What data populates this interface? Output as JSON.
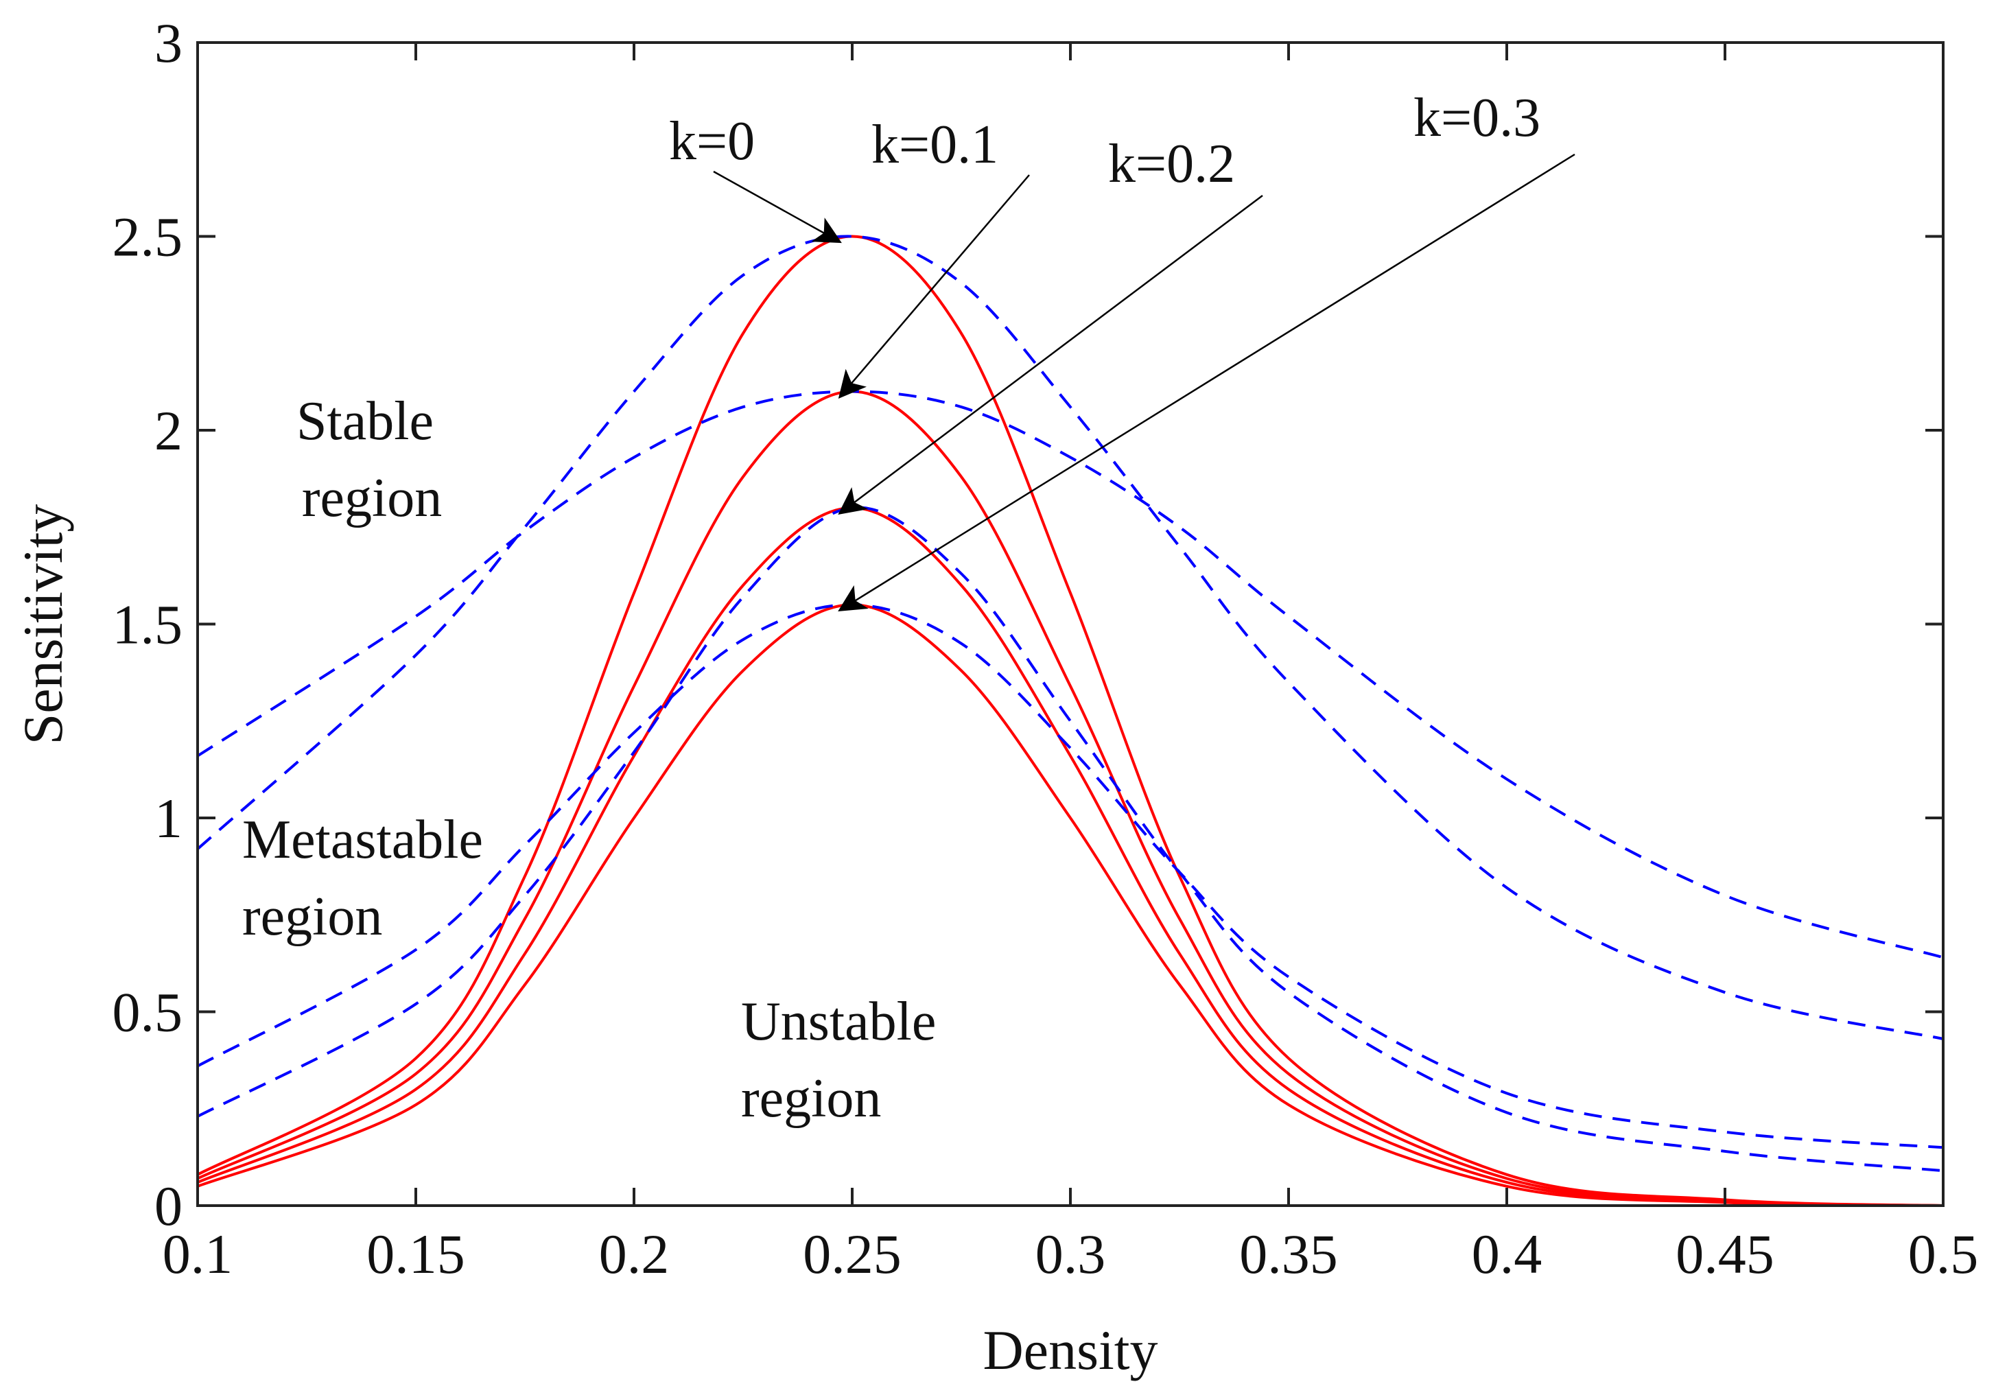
{
  "chart_data": {
    "type": "line",
    "title": "",
    "xlabel": "Density",
    "ylabel": "Sensitivity",
    "xlim": [
      0.1,
      0.5
    ],
    "ylim": [
      0,
      3
    ],
    "grid": false,
    "x_ticks": [
      0.1,
      0.15,
      0.2,
      0.25,
      0.3,
      0.35,
      0.4,
      0.45,
      0.5
    ],
    "x_tick_labels": [
      "0.1",
      "0.15",
      "0.2",
      "0.25",
      "0.3",
      "0.35",
      "0.4",
      "0.45",
      "0.5"
    ],
    "y_ticks": [
      0,
      0.5,
      1,
      1.5,
      2,
      2.5,
      3
    ],
    "y_tick_labels": [
      "0",
      "0.5",
      "1",
      "1.5",
      "2",
      "2.5",
      "3"
    ],
    "colors": {
      "solid": "#ff0000",
      "dashed": "#0000ff",
      "arrow": "#000000"
    },
    "series": [
      {
        "name": "k=0 (solid)",
        "style": "solid",
        "color": "#ff0000",
        "x": [
          0.1,
          0.15,
          0.175,
          0.2,
          0.225,
          0.25,
          0.275,
          0.3,
          0.325,
          0.35,
          0.4,
          0.45,
          0.5
        ],
        "values": [
          0.08,
          0.38,
          0.85,
          1.58,
          2.25,
          2.5,
          2.25,
          1.58,
          0.85,
          0.38,
          0.08,
          0.015,
          0.0
        ]
      },
      {
        "name": "k=0.1 (solid)",
        "style": "solid",
        "color": "#ff0000",
        "x": [
          0.1,
          0.15,
          0.175,
          0.2,
          0.225,
          0.25,
          0.275,
          0.3,
          0.325,
          0.35,
          0.4,
          0.45,
          0.5
        ],
        "values": [
          0.07,
          0.34,
          0.74,
          1.34,
          1.88,
          2.1,
          1.88,
          1.34,
          0.74,
          0.34,
          0.07,
          0.012,
          0.0
        ]
      },
      {
        "name": "k=0.2 (solid)",
        "style": "solid",
        "color": "#ff0000",
        "x": [
          0.1,
          0.15,
          0.175,
          0.2,
          0.225,
          0.25,
          0.275,
          0.3,
          0.325,
          0.35,
          0.4,
          0.45,
          0.5
        ],
        "values": [
          0.06,
          0.3,
          0.65,
          1.16,
          1.6,
          1.8,
          1.6,
          1.16,
          0.65,
          0.3,
          0.06,
          0.01,
          0.0
        ]
      },
      {
        "name": "k=0.3 (solid)",
        "style": "solid",
        "color": "#ff0000",
        "x": [
          0.1,
          0.15,
          0.175,
          0.2,
          0.225,
          0.25,
          0.275,
          0.3,
          0.325,
          0.35,
          0.4,
          0.45,
          0.5
        ],
        "values": [
          0.05,
          0.26,
          0.57,
          1.0,
          1.38,
          1.55,
          1.38,
          1.0,
          0.57,
          0.26,
          0.05,
          0.008,
          0.0
        ]
      },
      {
        "name": "k=0 (dashed)",
        "style": "dashed",
        "color": "#0000ff",
        "x": [
          0.1,
          0.15,
          0.175,
          0.2,
          0.225,
          0.25,
          0.275,
          0.3,
          0.325,
          0.35,
          0.4,
          0.45,
          0.5
        ],
        "values": [
          0.92,
          1.42,
          1.75,
          2.1,
          2.4,
          2.5,
          2.38,
          2.06,
          1.7,
          1.35,
          0.82,
          0.55,
          0.43
        ]
      },
      {
        "name": "k=0.1 (dashed)",
        "style": "dashed",
        "color": "#0000ff",
        "x": [
          0.1,
          0.15,
          0.175,
          0.2,
          0.225,
          0.25,
          0.275,
          0.3,
          0.325,
          0.35,
          0.4,
          0.45,
          0.5
        ],
        "values": [
          1.16,
          1.52,
          1.74,
          1.93,
          2.06,
          2.1,
          2.06,
          1.93,
          1.75,
          1.52,
          1.1,
          0.8,
          0.64
        ]
      },
      {
        "name": "k=0.2 (dashed)",
        "style": "dashed",
        "color": "#0000ff",
        "x": [
          0.1,
          0.15,
          0.175,
          0.2,
          0.225,
          0.25,
          0.275,
          0.3,
          0.325,
          0.35,
          0.4,
          0.45,
          0.5
        ],
        "values": [
          0.23,
          0.52,
          0.8,
          1.17,
          1.57,
          1.8,
          1.63,
          1.25,
          0.86,
          0.55,
          0.24,
          0.14,
          0.09
        ]
      },
      {
        "name": "k=0.3 (dashed)",
        "style": "dashed",
        "color": "#0000ff",
        "x": [
          0.1,
          0.15,
          0.175,
          0.2,
          0.225,
          0.25,
          0.275,
          0.3,
          0.325,
          0.35,
          0.4,
          0.45,
          0.5
        ],
        "values": [
          0.36,
          0.66,
          0.93,
          1.22,
          1.46,
          1.55,
          1.45,
          1.18,
          0.86,
          0.59,
          0.29,
          0.19,
          0.15
        ]
      }
    ],
    "annotations": [
      {
        "text": "k=0",
        "target": [
          0.25,
          2.5
        ]
      },
      {
        "text": "k=0.1",
        "target": [
          0.25,
          2.1
        ]
      },
      {
        "text": "k=0.2",
        "target": [
          0.25,
          1.8
        ]
      },
      {
        "text": "k=0.3",
        "target": [
          0.25,
          1.55
        ]
      }
    ],
    "regions": [
      "Stable region",
      "Metastable region",
      "Unstable region"
    ],
    "region_lines": {
      "stable": [
        "Stable",
        "region"
      ],
      "metastable": [
        "Metastable",
        "region"
      ],
      "unstable": [
        "Unstable",
        "region"
      ]
    }
  }
}
